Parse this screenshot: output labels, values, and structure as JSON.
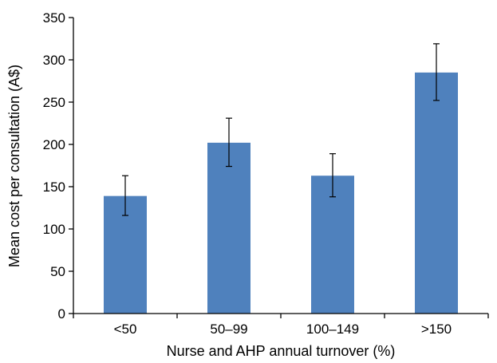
{
  "chart_data": {
    "type": "bar",
    "title": "",
    "xlabel": "Nurse and AHP annual turnover (%)",
    "ylabel": "Mean cost per consultation  (A$)",
    "categories": [
      "<50",
      "50–99",
      "100–149",
      ">150"
    ],
    "values": [
      139,
      202,
      163,
      285
    ],
    "error_low": [
      116,
      174,
      138,
      252
    ],
    "error_high": [
      163,
      231,
      189,
      319
    ],
    "ylim": [
      0,
      350
    ],
    "yticks": [
      "0",
      "50",
      "100",
      "150",
      "200",
      "250",
      "300",
      "350"
    ],
    "grid": false,
    "bar_color": "#4f81bd"
  }
}
